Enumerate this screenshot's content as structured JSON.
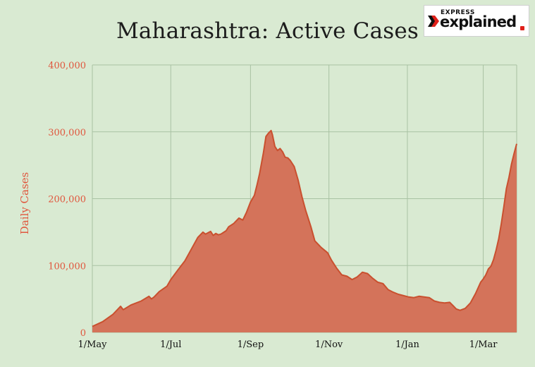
{
  "header": {
    "logo_small": "EXPRESS",
    "logo_big": "explained"
  },
  "chart_data": {
    "type": "area",
    "title": "Maharashtra: Active Cases",
    "xlabel": "",
    "ylabel": "Daily Cases",
    "ylim": [
      0,
      400000
    ],
    "xlim": [
      0,
      330
    ],
    "yticks": [
      "0",
      "100,000",
      "200,000",
      "300,000",
      "400,000"
    ],
    "yticks_values": [
      0,
      100000,
      200000,
      300000,
      400000
    ],
    "xticks": [
      "1/May",
      "1/Jul",
      "1/Sep",
      "1/Nov",
      "1/Jan",
      "1/Mar"
    ],
    "xticks_values": [
      0,
      61,
      123,
      184,
      245,
      304
    ],
    "grid": true,
    "colors": {
      "fill": "#d4735a",
      "line": "#c9502f",
      "background": "#d9ead2",
      "grid": "#a9c2a3"
    },
    "series": [
      {
        "x": [
          0,
          8,
          16,
          20,
          22,
          24,
          30,
          38,
          44,
          46,
          48,
          52,
          58,
          61,
          66,
          72,
          78,
          82,
          86,
          88,
          92,
          94,
          96,
          98,
          100,
          104,
          106,
          110,
          114,
          117,
          118,
          120,
          123,
          126,
          128,
          130,
          133,
          135,
          137,
          139,
          140,
          142,
          144,
          146,
          148,
          150,
          152,
          154,
          157,
          160,
          163,
          166,
          170,
          173,
          178,
          183,
          186,
          190,
          194,
          198,
          202,
          206,
          210,
          214,
          218,
          222,
          226,
          230,
          234,
          238,
          242,
          246,
          250,
          254,
          258,
          262,
          266,
          270,
          274,
          278,
          281,
          283,
          286,
          290,
          294,
          298,
          302,
          304,
          306,
          308,
          310,
          312,
          314,
          316,
          318,
          320,
          322,
          324,
          326,
          328,
          330
        ],
        "y": [
          9000,
          16000,
          27000,
          35000,
          39000,
          34000,
          41000,
          47000,
          54000,
          50000,
          53000,
          61000,
          69000,
          79000,
          92000,
          107000,
          128000,
          142000,
          150000,
          147000,
          151000,
          145000,
          148000,
          146000,
          147000,
          152000,
          158000,
          163000,
          171000,
          168000,
          172000,
          180000,
          195000,
          205000,
          220000,
          237000,
          268000,
          293000,
          298000,
          302000,
          296000,
          278000,
          272000,
          275000,
          270000,
          262000,
          261000,
          257000,
          248000,
          228000,
          203000,
          182000,
          158000,
          137000,
          127000,
          119000,
          108000,
          96000,
          86000,
          84000,
          79000,
          83000,
          90000,
          88000,
          81000,
          75000,
          73000,
          64000,
          60000,
          57000,
          55000,
          53000,
          52000,
          54000,
          53000,
          52000,
          47000,
          45000,
          44000,
          45000,
          39000,
          35000,
          33000,
          36000,
          44000,
          58000,
          75000,
          80000,
          86000,
          95000,
          99000,
          109000,
          123000,
          140000,
          162000,
          188000,
          215000,
          232000,
          252000,
          268000,
          282000
        ]
      }
    ]
  }
}
